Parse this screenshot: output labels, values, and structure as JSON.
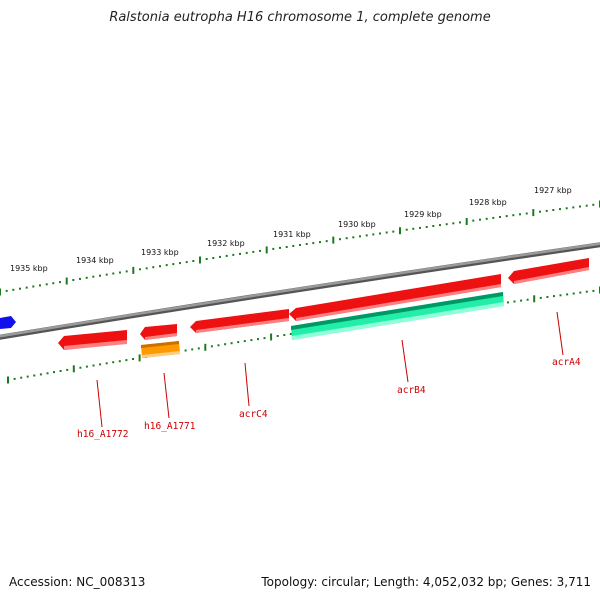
{
  "title": "Ralstonia eutropha H16 chromosome 1, complete genome",
  "accession": "Accession: NC_008313",
  "summary": "Topology: circular; Length: 4,052,032 bp; Genes: 3,711",
  "colors": {
    "backbone": "#7a7a7a",
    "ruler": "#1e7a1e",
    "gene_red": "#ee1111",
    "gene_orange": "#ff9900",
    "gene_green": "#22eeaa",
    "gene_blue": "#1111ee",
    "label_red": "#cc0000"
  },
  "scale_labels": [
    {
      "label": "1935 kbp"
    },
    {
      "label": "1934 kbp"
    },
    {
      "label": "1933 kbp"
    },
    {
      "label": "1932 kbp"
    },
    {
      "label": "1931 kbp"
    },
    {
      "label": "1930 kbp"
    },
    {
      "label": "1929 kbp"
    },
    {
      "label": "1928 kbp"
    },
    {
      "label": "1927 kbp"
    }
  ],
  "gene_labels": [
    {
      "label": "h16_A1772"
    },
    {
      "label": "h16_A1771"
    },
    {
      "label": "acrC4"
    },
    {
      "label": "acrB4"
    },
    {
      "label": "acrA4"
    }
  ]
}
